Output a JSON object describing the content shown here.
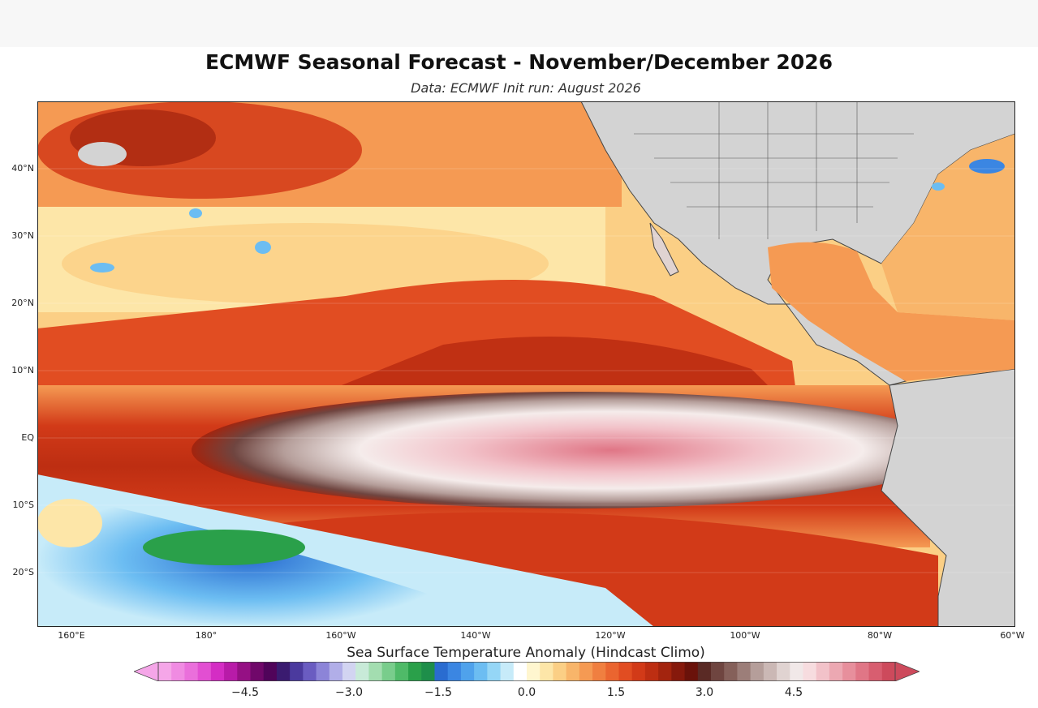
{
  "header": {
    "title": "ECMWF Seasonal Forecast - November/December 2026",
    "subtitle": "Data: ECMWF   Init run: August 2026"
  },
  "map": {
    "lat_ticks": [
      "40°N",
      "30°N",
      "20°N",
      "10°N",
      "EQ",
      "10°S",
      "20°S"
    ],
    "lon_ticks": [
      "160°E",
      "180°",
      "160°W",
      "140°W",
      "120°W",
      "100°W",
      "80°W",
      "60°W"
    ],
    "colors": {
      "land": "#d3d3d3",
      "ocean_warm_low": "#fde6a8",
      "ocean_warm_mid": "#f2893a",
      "ocean_warm_high": "#d4401a",
      "ocean_hot": "#8a2a18",
      "cold_tongue_peak": "#ffffff",
      "cold_tongue_pink": "#e08a96",
      "cool_blue": "#3f8fdc",
      "cool_green": "#2ea84a"
    }
  },
  "colorbar": {
    "label": "Sea Surface Temperature Anomaly (Hindcast Climo)",
    "tick_labels": [
      "−4.5",
      "−3.0",
      "−1.5",
      "0.0",
      "1.5",
      "3.0",
      "4.5"
    ],
    "tick_values": [
      -4.5,
      -3.0,
      -1.5,
      0.0,
      1.5,
      3.0,
      4.5
    ],
    "min": -6.0,
    "max": 6.0,
    "colors": [
      "#f5a6e8",
      "#f08be2",
      "#ea6fdb",
      "#e24fd2",
      "#d42dc4",
      "#b81ba8",
      "#951084",
      "#70086a",
      "#50045a",
      "#3a1b70",
      "#4b3a9e",
      "#6a5cc1",
      "#8c84d8",
      "#b1aee8",
      "#d2d4f1",
      "#c8ead8",
      "#a3ddb0",
      "#79cd8c",
      "#4fba68",
      "#2aa04a",
      "#1e8e4a",
      "#2a6cd0",
      "#3b86e2",
      "#4fa2ec",
      "#6cbdf2",
      "#95d6f6",
      "#c7ebf9",
      "#ffffff",
      "#fff6cf",
      "#fde6a8",
      "#fbcf85",
      "#f8b56a",
      "#f59a53",
      "#f07f40",
      "#ea6530",
      "#e14d22",
      "#d23a18",
      "#bd2e12",
      "#a3240e",
      "#86190c",
      "#6a120a",
      "#5a2a25",
      "#6f4540",
      "#85605a",
      "#9c7e79",
      "#b59e9a",
      "#cbb8b5",
      "#e0d3d1",
      "#f1e8e8",
      "#f7dcdf",
      "#f2c2c9",
      "#eca8b2",
      "#e78f9c",
      "#e07686",
      "#d85e70",
      "#cd4a5c"
    ]
  }
}
